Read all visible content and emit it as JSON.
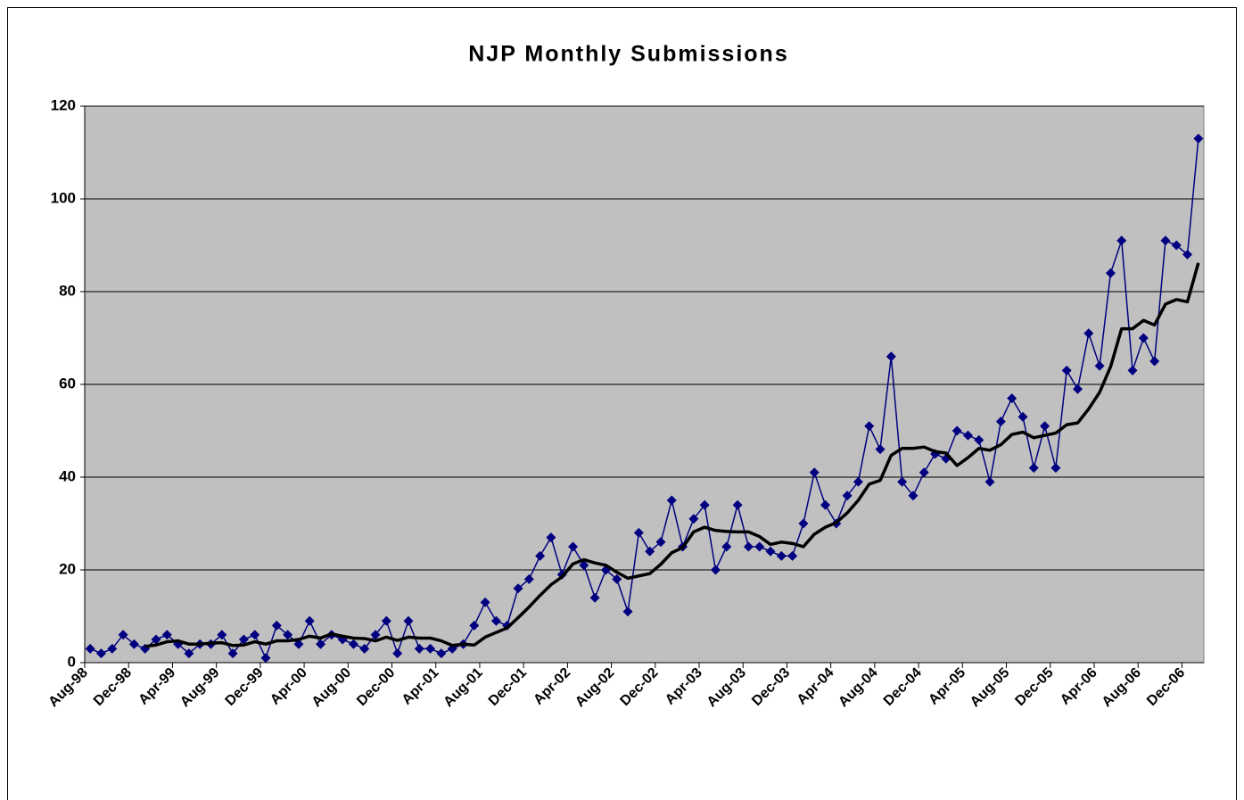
{
  "chart_data": {
    "type": "line",
    "title": "NJP Monthly Submissions",
    "categories": [
      "Aug-98",
      null,
      null,
      null,
      "Dec-98",
      null,
      null,
      null,
      "Apr-99",
      null,
      null,
      null,
      "Aug-99",
      null,
      null,
      null,
      "Dec-99",
      null,
      null,
      null,
      "Apr-00",
      null,
      null,
      null,
      "Aug-00",
      null,
      null,
      null,
      "Dec-00",
      null,
      null,
      null,
      "Apr-01",
      null,
      null,
      null,
      "Aug-01",
      null,
      null,
      null,
      "Dec-01",
      null,
      null,
      null,
      "Apr-02",
      null,
      null,
      null,
      "Aug-02",
      null,
      null,
      null,
      "Dec-02",
      null,
      null,
      null,
      "Apr-03",
      null,
      null,
      null,
      "Aug-03",
      null,
      null,
      null,
      "Dec-03",
      null,
      null,
      null,
      "Apr-04",
      null,
      null,
      null,
      "Aug-04",
      null,
      null,
      null,
      "Dec-04",
      null,
      null,
      null,
      "Apr-05",
      null,
      null,
      null,
      "Aug-05",
      null,
      null,
      null,
      "Dec-05",
      null,
      null,
      null,
      "Apr-06",
      null,
      null,
      null,
      "Aug-06",
      null,
      null,
      null,
      "Dec-06",
      null
    ],
    "series": [
      {
        "color": "#000080",
        "markers": true,
        "values": [
          3,
          2,
          3,
          6,
          4,
          3,
          5,
          6,
          4,
          2,
          4,
          4,
          6,
          2,
          5,
          6,
          1,
          8,
          6,
          4,
          9,
          4,
          6,
          5,
          4,
          3,
          6,
          9,
          2,
          9,
          3,
          3,
          2,
          3,
          4,
          8,
          13,
          9,
          8,
          16,
          18,
          23,
          27,
          19,
          25,
          21,
          14,
          20,
          18,
          11,
          28,
          24,
          26,
          35,
          25,
          31,
          34,
          20,
          25,
          34,
          25,
          25,
          24,
          23,
          23,
          30,
          41,
          34,
          30,
          36,
          39,
          51,
          46,
          66,
          39,
          36,
          41,
          45,
          44,
          50,
          49,
          48,
          39,
          52,
          57,
          53,
          42,
          51,
          42,
          63,
          59,
          71,
          64,
          84,
          91,
          63,
          70,
          65,
          91,
          90,
          88,
          113
        ]
      },
      {
        "color": "#000000",
        "markers": false,
        "values": [
          null,
          null,
          null,
          null,
          null,
          3.5,
          3.8,
          4.5,
          4.7,
          4.0,
          4.0,
          4.2,
          4.3,
          3.7,
          3.8,
          4.5,
          4.0,
          4.7,
          4.7,
          5.0,
          5.7,
          5.3,
          6.2,
          5.7,
          5.3,
          5.2,
          4.7,
          5.5,
          4.8,
          5.5,
          5.3,
          5.3,
          4.7,
          3.7,
          4.0,
          3.8,
          5.5,
          6.5,
          7.5,
          9.7,
          12.0,
          14.5,
          16.8,
          18.5,
          21.3,
          22.2,
          21.5,
          21.0,
          19.5,
          18.2,
          18.7,
          19.2,
          21.2,
          23.7,
          24.8,
          28.2,
          29.2,
          28.5,
          28.3,
          28.2,
          28.2,
          27.2,
          25.5,
          26.0,
          25.7,
          25.0,
          27.7,
          29.2,
          30.2,
          32.3,
          35.0,
          38.5,
          39.3,
          44.7,
          46.2,
          46.2,
          46.5,
          45.5,
          45.2,
          42.5,
          44.2,
          46.2,
          45.8,
          47.0,
          49.2,
          49.7,
          48.5,
          49.0,
          49.5,
          51.3,
          51.7,
          54.7,
          58.3,
          63.8,
          72.0,
          72.0,
          73.8,
          72.8,
          77.3,
          78.3,
          77.8,
          86.2
        ]
      }
    ],
    "ylim": [
      0,
      120
    ],
    "yticks": [
      0,
      20,
      40,
      60,
      80,
      100,
      120
    ],
    "grid": true,
    "plot_background": "#c0c0c0"
  }
}
